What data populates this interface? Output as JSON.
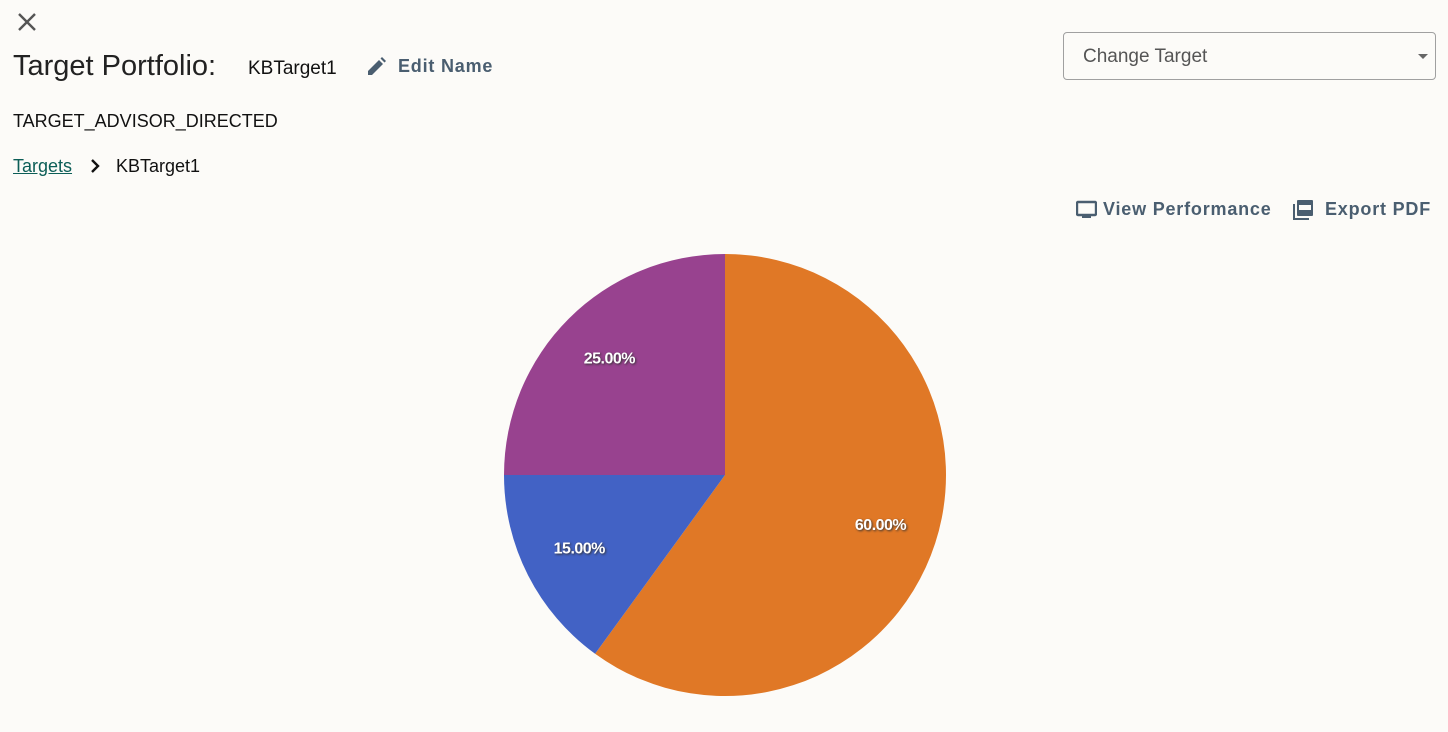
{
  "header": {
    "title": "Target Portfolio:",
    "name": "KBTarget1",
    "edit": "Edit Name",
    "kind": "TARGET_ADVISOR_DIRECTED",
    "dropdown": "Change Target"
  },
  "breadcrumb": {
    "link": "Targets",
    "current": "KBTarget1"
  },
  "actions": [
    "View Performance",
    "Export PDF"
  ],
  "chart_data": {
    "type": "pie",
    "values": [
      60,
      15,
      25
    ],
    "value_labels": [
      "60.00%",
      "15.00%",
      "25.00%"
    ],
    "colors": [
      "#e07826",
      "#4262c5",
      "#98428f"
    ]
  }
}
